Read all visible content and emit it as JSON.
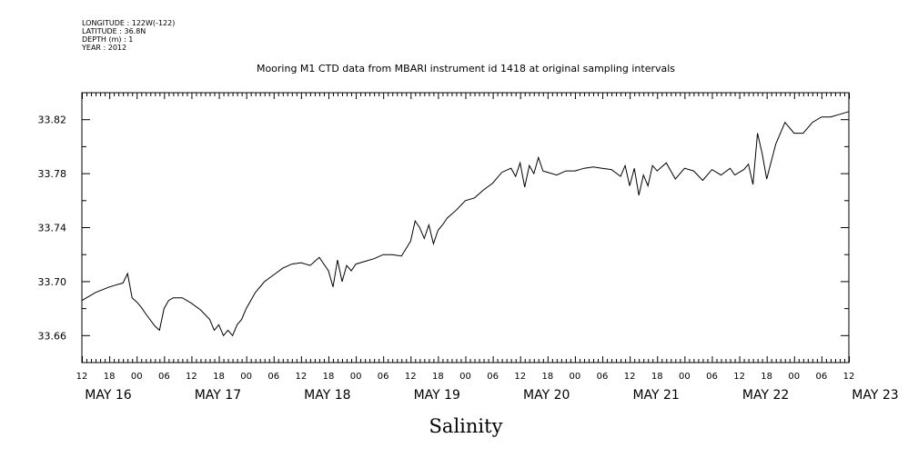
{
  "meta_lines": [
    "LONGITUDE : 122W(-122)",
    "LATITUDE : 36.8N",
    "DEPTH (m) : 1",
    "YEAR : 2012"
  ],
  "chart_data": {
    "type": "line",
    "title": "Mooring M1 CTD data from MBARI instrument id 1418 at original sampling intervals",
    "xlabel": "Salinity",
    "ylabel": "",
    "xlim_hours": [
      0,
      168
    ],
    "ylim": [
      33.64,
      33.84
    ],
    "y_ticks": [
      33.66,
      33.7,
      33.74,
      33.78,
      33.82
    ],
    "y_tick_labels": [
      "33.66",
      "33.70",
      "33.74",
      "33.78",
      "33.82"
    ],
    "x_hour_labels": [
      "12",
      "18",
      "00",
      "06",
      "12",
      "18",
      "00",
      "06",
      "12",
      "18",
      "00",
      "06",
      "12",
      "18",
      "00",
      "06",
      "12",
      "18",
      "00",
      "06",
      "12",
      "18",
      "00",
      "06",
      "12",
      "18",
      "00",
      "06",
      "12"
    ],
    "x_day_labels": [
      {
        "label": "MAY 16",
        "hour": 0
      },
      {
        "label": "MAY 17",
        "hour": 24
      },
      {
        "label": "MAY 18",
        "hour": 48
      },
      {
        "label": "MAY 19",
        "hour": 72
      },
      {
        "label": "MAY 20",
        "hour": 96
      },
      {
        "label": "MAY 21",
        "hour": 120
      },
      {
        "label": "MAY 22",
        "hour": 144
      },
      {
        "label": "MAY 23",
        "hour": 168
      }
    ],
    "grid": false,
    "series": [
      {
        "color": "#000000",
        "hours": [
          0,
          3,
          6,
          9,
          10,
          11,
          12,
          13,
          14,
          16,
          17,
          18,
          19,
          20,
          22,
          24,
          26,
          28,
          29,
          30,
          31,
          32,
          33,
          34,
          35,
          36,
          38,
          40,
          42,
          44,
          46,
          48,
          50,
          52,
          54,
          55,
          56,
          57,
          58,
          59,
          60,
          62,
          64,
          66,
          68,
          70,
          72,
          73,
          74,
          75,
          76,
          77,
          78,
          79,
          80,
          82,
          84,
          86,
          88,
          90,
          92,
          94,
          95,
          96,
          97,
          98,
          99,
          100,
          101,
          102,
          104,
          106,
          108,
          110,
          112,
          114,
          116,
          118,
          119,
          120,
          121,
          122,
          123,
          124,
          125,
          126,
          128,
          130,
          132,
          134,
          136,
          138,
          140,
          142,
          143,
          144,
          145,
          146,
          147,
          148,
          149,
          150,
          152,
          154,
          156,
          158,
          160,
          162,
          164,
          166,
          168
        ],
        "values": [
          33.686,
          33.692,
          33.696,
          33.699,
          33.706,
          33.688,
          33.685,
          33.681,
          33.676,
          33.667,
          33.664,
          33.68,
          33.686,
          33.688,
          33.688,
          33.684,
          33.679,
          33.672,
          33.664,
          33.668,
          33.66,
          33.664,
          33.66,
          33.668,
          33.672,
          33.68,
          33.692,
          33.7,
          33.705,
          33.71,
          33.713,
          33.714,
          33.712,
          33.718,
          33.708,
          33.696,
          33.716,
          33.7,
          33.712,
          33.708,
          33.713,
          33.715,
          33.717,
          33.72,
          33.72,
          33.719,
          33.73,
          33.745,
          33.74,
          33.732,
          33.742,
          33.728,
          33.738,
          33.742,
          33.747,
          33.753,
          33.76,
          33.762,
          33.768,
          33.773,
          33.781,
          33.784,
          33.778,
          33.788,
          33.77,
          33.786,
          33.78,
          33.792,
          33.782,
          33.781,
          33.779,
          33.782,
          33.782,
          33.784,
          33.785,
          33.784,
          33.783,
          33.778,
          33.786,
          33.771,
          33.784,
          33.764,
          33.779,
          33.771,
          33.786,
          33.782,
          33.788,
          33.776,
          33.784,
          33.782,
          33.775,
          33.783,
          33.779,
          33.784,
          33.779,
          33.781,
          33.783,
          33.787,
          33.772,
          33.81,
          33.795,
          33.776,
          33.802,
          33.818,
          33.81,
          33.81,
          33.818,
          33.822,
          33.822,
          33.824,
          33.826
        ]
      }
    ]
  }
}
